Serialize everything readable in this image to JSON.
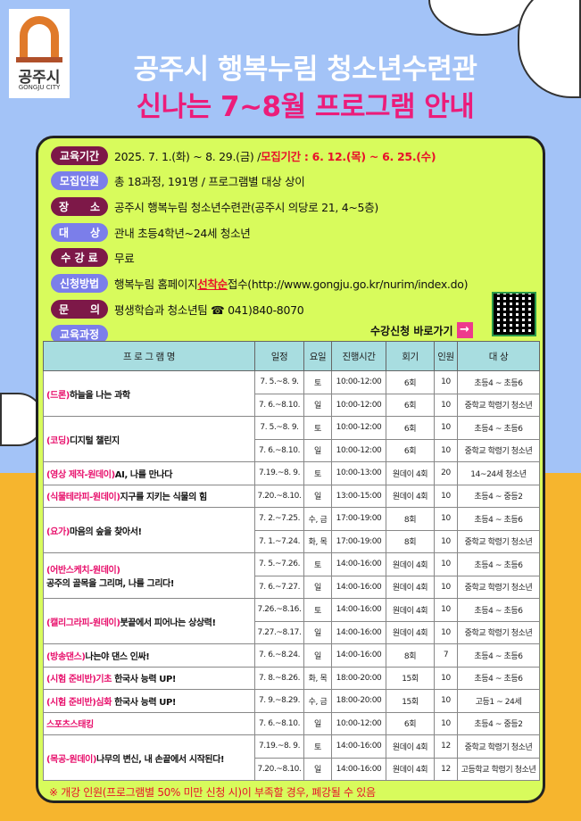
{
  "logo": {
    "korean": "공주시",
    "english": "GONGJU CITY"
  },
  "title": "공주시 행복누림 청소년수련관",
  "subtitle": "신나는 7~8월 프로그램 안내",
  "info": [
    {
      "label": "교육기간",
      "text": "2025. 7. 1.(화) ~ 8. 29.(금) / ",
      "highlight": "모집기간 : 6. 12.(목) ~ 6. 25.(수)"
    },
    {
      "label": "모집인원",
      "text": "총 18과정, 191명 / 프로그램별 대상 상이"
    },
    {
      "label": "장　　소",
      "text": "공주시 행복누림 청소년수련관(공주시 의당로 21, 4~5층)"
    },
    {
      "label": "대　　상",
      "text": "관내 초등4학년~24세 청소년"
    },
    {
      "label": "수 강 료",
      "text": "무료"
    },
    {
      "label": "신청방법",
      "text": "행복누림 홈페이지 ",
      "highlight": "선착순",
      "text2": " 접수(http://www.gongju.go.kr/nurim/index.do)"
    },
    {
      "label": "문　　의",
      "text": "평생학습과 청소년팀 ☎ 041)840-8070"
    },
    {
      "label": "교육과정"
    }
  ],
  "apply_link": "수강신청 바로가기",
  "table": {
    "headers": [
      "프 로 그 램 명",
      "일정",
      "요일",
      "진행시간",
      "회기",
      "인원",
      "대 상"
    ],
    "programs": [
      {
        "prefix": "(드론)",
        "title": "하늘을 나는 과학",
        "sessions": [
          [
            "7. 5.~8. 9.",
            "토",
            "10:00-12:00",
            "6회",
            "10",
            "초등4 ~ 초등6"
          ],
          [
            "7. 6.~8.10.",
            "일",
            "10:00-12:00",
            "6회",
            "10",
            "중학교 학령기 청소년"
          ]
        ]
      },
      {
        "prefix": "(코딩)",
        "title": "디지털 챌린지",
        "sessions": [
          [
            "7. 5.~8. 9.",
            "토",
            "10:00-12:00",
            "6회",
            "10",
            "초등4 ~ 초등6"
          ],
          [
            "7. 6.~8.10.",
            "일",
            "10:00-12:00",
            "6회",
            "10",
            "중학교 학령기 청소년"
          ]
        ]
      },
      {
        "prefix": "(영상  제작-원데이)",
        "title": "AI, 나를 만나다",
        "sessions": [
          [
            "7.19.~8. 9.",
            "토",
            "10:00-13:00",
            "원데이 4회",
            "20",
            "14~24세 청소년"
          ]
        ]
      },
      {
        "prefix": "(식물테라피-원데이)",
        "title": "지구를 지키는 식물의 힘",
        "sessions": [
          [
            "7.20.~8.10.",
            "일",
            "13:00-15:00",
            "원데이 4회",
            "10",
            "초등4 ~ 중등2"
          ]
        ]
      },
      {
        "prefix": "(요가)",
        "title": "마음의 숲을 찾아서!",
        "sessions": [
          [
            "7. 2.~7.25.",
            "수, 금",
            "17:00-19:00",
            "8회",
            "10",
            "초등4 ~ 초등6"
          ],
          [
            "7. 1.~7.24.",
            "화, 목",
            "17:00-19:00",
            "8회",
            "10",
            "중학교 학령기 청소년"
          ]
        ]
      },
      {
        "prefix": "(어반스케치-원데이)",
        "title": "공주의 골목을 그리며, 나를 그리다!",
        "newline": true,
        "sessions": [
          [
            "7. 5.~7.26.",
            "토",
            "14:00-16:00",
            "원데이 4회",
            "10",
            "초등4 ~ 초등6"
          ],
          [
            "7. 6.~7.27.",
            "일",
            "14:00-16:00",
            "원데이 4회",
            "10",
            "중학교 학령기 청소년"
          ]
        ]
      },
      {
        "prefix": "(캘리그라피-원데이)",
        "title": "붓끝에서 피어나는 상상력!",
        "sessions": [
          [
            "7.26.~8.16.",
            "토",
            "14:00-16:00",
            "원데이 4회",
            "10",
            "초등4 ~ 초등6"
          ],
          [
            "7.27.~8.17.",
            "일",
            "14:00-16:00",
            "원데이 4회",
            "10",
            "중학교 학령기 청소년"
          ]
        ]
      },
      {
        "prefix": "(방송댄스)",
        "title": "나는야 댄스 인싸!",
        "sessions": [
          [
            "7. 6.~8.24.",
            "일",
            "14:00-16:00",
            "8회",
            "7",
            "초등4 ~ 초등6"
          ]
        ]
      },
      {
        "prefix": "(시험 준비반)기초",
        "title": " 한국사 능력 UP!",
        "sessions": [
          [
            "7. 8.~8.26.",
            "화, 목",
            "18:00-20:00",
            "15회",
            "10",
            "초등4 ~ 초등6"
          ]
        ]
      },
      {
        "prefix": "(시험 준비반)심화",
        "title": " 한국사 능력 UP!",
        "sessions": [
          [
            "7. 9.~8.29.",
            "수, 금",
            "18:00-20:00",
            "15회",
            "10",
            "고등1 ~ 24세"
          ]
        ]
      },
      {
        "prefix": "스포츠스태킹",
        "title": "",
        "sessions": [
          [
            "7. 6.~8.10.",
            "일",
            "10:00-12:00",
            "6회",
            "10",
            "초등4 ~ 중등2"
          ]
        ]
      },
      {
        "prefix": "(목공-원데이)",
        "title": "나무의 변신, 내 손끝에서 시작된다!",
        "sessions": [
          [
            "7.19.~8. 9.",
            "토",
            "14:00-16:00",
            "원데이 4회",
            "12",
            "중학교 학령기 청소년"
          ],
          [
            "7.20.~8.10.",
            "일",
            "14:00-16:00",
            "원데이 4회",
            "12",
            "고등학교 학령기 청소년"
          ]
        ]
      }
    ]
  },
  "note": "※ 개강 인원(프로그램별 50% 미만 신청 시)이 부족할 경우, 폐강될 수 있음",
  "colors": {
    "sky": "#a3c3f7",
    "panel": "#d8fb5c",
    "title_pink": "#ec1c7a",
    "pill_dark": "#7d1848",
    "pill_light": "#7b7eea",
    "header": "#a8dde0"
  }
}
